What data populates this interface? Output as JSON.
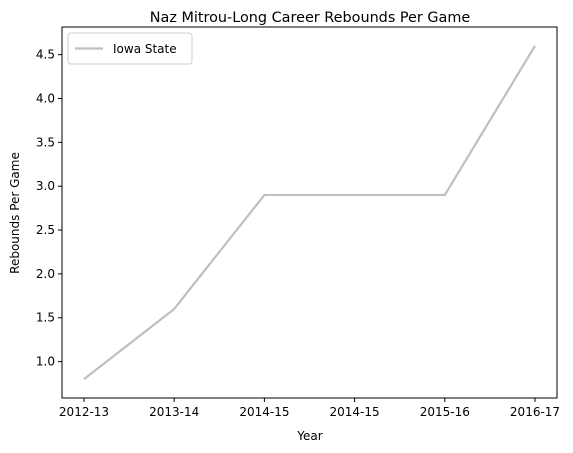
{
  "chart_data": {
    "type": "line",
    "title": "Naz Mitrou-Long Career Rebounds Per Game",
    "xlabel": "Year",
    "ylabel": "Rebounds Per Game",
    "categories": [
      "2012-13",
      "2013-14",
      "2014-15",
      "2014-15",
      "2015-16",
      "2016-17"
    ],
    "series": [
      {
        "name": "Iowa State",
        "values": [
          0.8,
          1.6,
          2.9,
          2.9,
          2.9,
          4.6
        ],
        "color": "#bfbfbf"
      }
    ],
    "ylim": [
      0.585,
      4.815
    ],
    "yticks": [
      1.0,
      1.5,
      2.0,
      2.5,
      3.0,
      3.5,
      4.0,
      4.5
    ],
    "ytick_labels": [
      "1.0",
      "1.5",
      "2.0",
      "2.5",
      "3.0",
      "3.5",
      "4.0",
      "4.5"
    ],
    "grid": false,
    "legend_position": "top-left"
  }
}
